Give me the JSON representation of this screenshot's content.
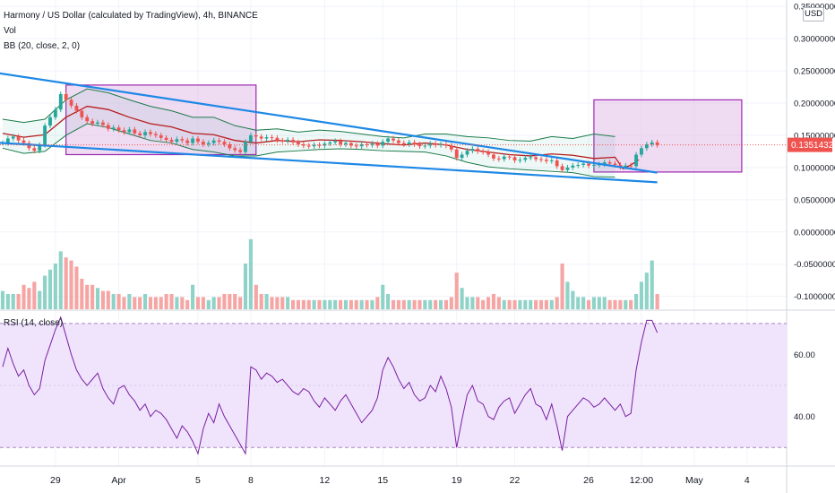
{
  "header": {
    "symbol_line": "Harmony / US Dollar (calculated by TradingView), 4h, BINANCE",
    "vol_label": "Vol",
    "bb_label": "BB (20, close, 2, 0)",
    "currency_button": "USD"
  },
  "rsi_panel": {
    "label": "RSI (14, close)"
  },
  "colors": {
    "up": "#26a69a",
    "down": "#ef5350",
    "vol_up": "#8fd3c8",
    "vol_down": "#f5a5a3",
    "bb_band": "#1b7a48",
    "bb_basis": "#b71c1c",
    "trend": "#1e88e5",
    "box_fill": "#e1bee7",
    "box_stroke": "#9c27b0",
    "rsi_line": "#7b1fa2",
    "rsi_fill": "#efe4fb",
    "price_tag": "#ef5350"
  },
  "chart_data": [
    {
      "type": "candlestick",
      "title": "Harmony / US Dollar (calculated by TradingView), 4h, BINANCE",
      "y_ticks": [
        "0.35000000",
        "0.30000000",
        "0.25000000",
        "0.20000000",
        "0.15000000",
        "0.10000000",
        "0.05000000",
        "0.00000000",
        "-0.05000000",
        "-0.10000000"
      ],
      "ylim": [
        -0.12,
        0.36
      ],
      "x_ticks": [
        {
          "label": "29",
          "i": 10
        },
        {
          "label": "Apr",
          "i": 22
        },
        {
          "label": "5",
          "i": 37
        },
        {
          "label": "8",
          "i": 47
        },
        {
          "label": "12",
          "i": 61
        },
        {
          "label": "15",
          "i": 72
        },
        {
          "label": "19",
          "i": 86
        },
        {
          "label": "22",
          "i": 97
        },
        {
          "label": "26",
          "i": 111
        },
        {
          "label": "12:00",
          "i": 121
        },
        {
          "label": "May",
          "i": 131
        },
        {
          "label": "4",
          "i": 141
        }
      ],
      "x_count": 149,
      "last_price": "0.13514322",
      "candle_values": [
        0.138,
        0.145,
        0.148,
        0.142,
        0.138,
        0.13,
        0.126,
        0.135,
        0.165,
        0.178,
        0.19,
        0.214,
        0.205,
        0.196,
        0.188,
        0.178,
        0.172,
        0.168,
        0.17,
        0.166,
        0.16,
        0.162,
        0.158,
        0.155,
        0.159,
        0.153,
        0.15,
        0.155,
        0.152,
        0.15,
        0.146,
        0.143,
        0.14,
        0.144,
        0.142,
        0.138,
        0.145,
        0.14,
        0.136,
        0.138,
        0.142,
        0.14,
        0.136,
        0.13,
        0.127,
        0.124,
        0.14,
        0.15,
        0.148,
        0.145,
        0.147,
        0.146,
        0.142,
        0.141,
        0.143,
        0.139,
        0.136,
        0.134,
        0.133,
        0.135,
        0.134,
        0.137,
        0.139,
        0.141,
        0.136,
        0.138,
        0.134,
        0.133,
        0.136,
        0.135,
        0.137,
        0.134,
        0.14,
        0.145,
        0.142,
        0.138,
        0.136,
        0.139,
        0.136,
        0.133,
        0.134,
        0.137,
        0.135,
        0.136,
        0.134,
        0.128,
        0.115,
        0.12,
        0.126,
        0.129,
        0.125,
        0.124,
        0.12,
        0.114,
        0.113,
        0.117,
        0.116,
        0.111,
        0.112,
        0.115,
        0.116,
        0.113,
        0.112,
        0.11,
        0.111,
        0.102,
        0.096,
        0.1,
        0.103,
        0.104,
        0.106,
        0.103,
        0.104,
        0.105,
        0.108,
        0.106,
        0.104,
        0.101,
        0.103,
        0.102,
        0.12,
        0.13,
        0.136,
        0.139,
        0.135
      ],
      "candle_start_i": 0,
      "bb_upper_values": [
        0.175,
        0.17,
        0.175,
        0.205,
        0.222,
        0.216,
        0.205,
        0.195,
        0.188,
        0.178,
        0.178,
        0.165,
        0.158,
        0.16,
        0.155,
        0.158,
        0.156,
        0.152,
        0.148,
        0.146,
        0.152,
        0.152,
        0.148,
        0.146,
        0.142,
        0.141,
        0.148,
        0.145,
        0.152,
        0.148
      ],
      "bb_lower_values": [
        0.13,
        0.122,
        0.125,
        0.15,
        0.168,
        0.162,
        0.152,
        0.142,
        0.138,
        0.128,
        0.124,
        0.118,
        0.118,
        0.124,
        0.126,
        0.128,
        0.129,
        0.128,
        0.126,
        0.125,
        0.124,
        0.118,
        0.108,
        0.101,
        0.098,
        0.096,
        0.094,
        0.092,
        0.086,
        0.085
      ],
      "bb_basis_values": [
        0.153,
        0.147,
        0.151,
        0.178,
        0.195,
        0.19,
        0.178,
        0.168,
        0.163,
        0.153,
        0.151,
        0.142,
        0.138,
        0.142,
        0.14,
        0.143,
        0.142,
        0.14,
        0.137,
        0.135,
        0.138,
        0.135,
        0.128,
        0.124,
        0.12,
        0.118,
        0.121,
        0.119,
        0.114,
        0.116
      ],
      "bb_step": 4,
      "basis_tail_values": [
        0.098,
        0.104,
        0.112
      ],
      "trendlines": [
        {
          "i1": -2,
          "v1": 0.248,
          "i2": 124,
          "v2": 0.092
        },
        {
          "i1": -2,
          "v1": 0.139,
          "i2": 124,
          "v2": 0.077
        }
      ],
      "boxes": [
        {
          "i1": 12,
          "v1": 0.228,
          "i2": 48,
          "v2": 0.12
        },
        {
          "i1": 112,
          "v1": 0.205,
          "i2": 140,
          "v2": 0.093
        }
      ],
      "volume_values": [
        6,
        5,
        5,
        5,
        8,
        7,
        9,
        6,
        11,
        13,
        15,
        19,
        17,
        16,
        14,
        10,
        8,
        8,
        7,
        6,
        6,
        5,
        5,
        4,
        5,
        4,
        4,
        5,
        4,
        4,
        4,
        5,
        5,
        4,
        4,
        3,
        8,
        4,
        4,
        3,
        4,
        4,
        5,
        5,
        5,
        4,
        15,
        23,
        8,
        5,
        5,
        4,
        4,
        4,
        4,
        3,
        3,
        3,
        3,
        3,
        3,
        3,
        3,
        3,
        3,
        3,
        3,
        3,
        3,
        3,
        3,
        4,
        8,
        5,
        3,
        3,
        3,
        3,
        3,
        3,
        3,
        3,
        3,
        3,
        3,
        4,
        12,
        7,
        4,
        4,
        4,
        3,
        4,
        5,
        4,
        3,
        3,
        3,
        3,
        3,
        3,
        3,
        3,
        3,
        3,
        4,
        15,
        9,
        6,
        4,
        4,
        3,
        4,
        4,
        4,
        3,
        3,
        3,
        3,
        3,
        5,
        9,
        12,
        16,
        5
      ]
    },
    {
      "type": "line",
      "title": "RSI (14, close)",
      "y_ticks": [
        "60.00",
        "40.00"
      ],
      "ylim": [
        24,
        74
      ],
      "band": [
        30,
        70
      ],
      "x_count": 149,
      "rsi_values": [
        56,
        62,
        57,
        53,
        55,
        50,
        47,
        49,
        58,
        63,
        68,
        72,
        66,
        60,
        55,
        52,
        50,
        52,
        54,
        49,
        46,
        44,
        49,
        50,
        47,
        45,
        42,
        44,
        40,
        42,
        41,
        39,
        36,
        33,
        37,
        35,
        32,
        28,
        36,
        41,
        38,
        44,
        40,
        37,
        34,
        31,
        28,
        56,
        55,
        52,
        54,
        53,
        51,
        52,
        50,
        48,
        47,
        49,
        48,
        45,
        43,
        46,
        44,
        42,
        45,
        47,
        44,
        41,
        38,
        40,
        42,
        46,
        55,
        59,
        56,
        52,
        49,
        51,
        47,
        45,
        46,
        50,
        48,
        53,
        49,
        43,
        30,
        39,
        47,
        50,
        45,
        44,
        40,
        39,
        43,
        45,
        46,
        41,
        44,
        47,
        49,
        44,
        43,
        39,
        44,
        37,
        29,
        40,
        42,
        44,
        46,
        45,
        43,
        44,
        46,
        44,
        42,
        44,
        40,
        41,
        55,
        64,
        71,
        71,
        67
      ]
    }
  ]
}
